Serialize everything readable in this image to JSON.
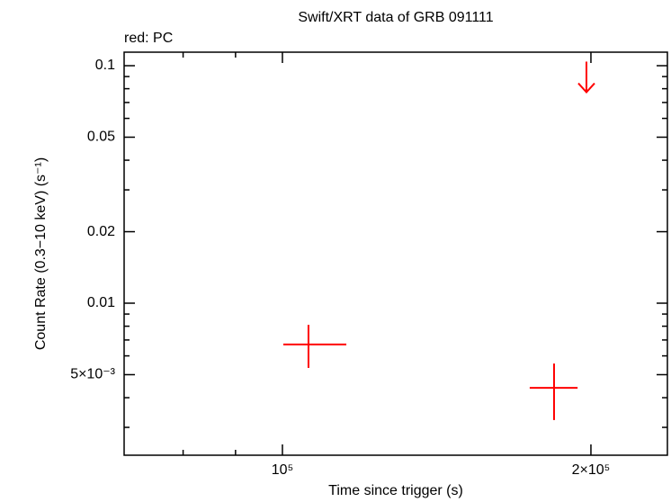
{
  "chart_data": {
    "type": "scatter",
    "title": "Swift/XRT data of GRB 091111",
    "subtitle": "red: PC",
    "x_label": "Time since trigger (s)",
    "y_label": "Count Rate (0.3−10 keV) (s⁻¹)",
    "log_x": true,
    "log_y": true,
    "xlim": [
      70070,
      237500
    ],
    "ylim": [
      0.00229,
      0.114
    ],
    "xticks": [
      {
        "value": 100000,
        "label": "10⁵"
      },
      {
        "value": 200000,
        "label": "2×10⁵"
      }
    ],
    "x_minor_ticks": [
      80000,
      90000
    ],
    "yticks": [
      {
        "value": 0.005,
        "label": "5×10⁻³"
      },
      0.01,
      0.02,
      0.05,
      0.1
    ],
    "y_minor_ticks": [
      0.003,
      0.004,
      0.006,
      0.007,
      0.008,
      0.009,
      0.03,
      0.04,
      0.06,
      0.07,
      0.08,
      0.09
    ],
    "series": [
      {
        "name": "PC",
        "color": "#ff0000",
        "x": [
          106030,
          184100
        ],
        "values": [
          0.0067,
          0.0044
        ],
        "x_lower": [
          100200,
          174300
        ],
        "x_upper": [
          115440,
          194100
        ],
        "y_lower": [
          0.00534,
          0.00322
        ],
        "y_upper": [
          0.00811,
          0.00557
        ]
      }
    ],
    "upper_limits": {
      "color": "#ff0000",
      "x": [
        198000
      ],
      "values": [
        0.104
      ]
    }
  }
}
